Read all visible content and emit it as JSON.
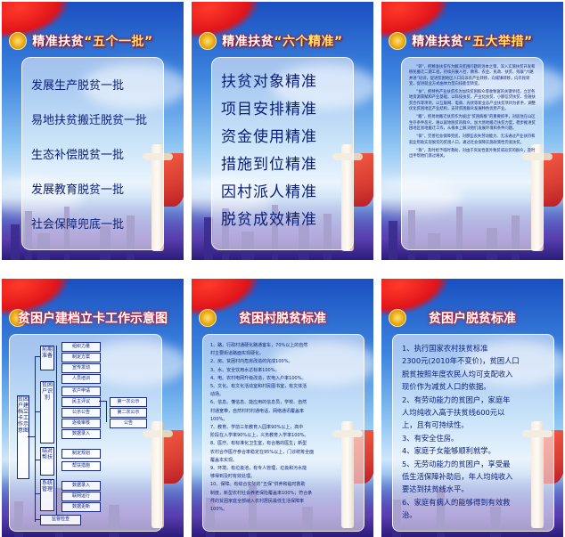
{
  "posters": {
    "p1": {
      "title_prefix": "精准扶贫",
      "title_hl": "“五个一批”",
      "items": [
        "发展生产脱贫一批",
        "易地扶贫搬迁脱贫一批",
        "生态补偿脱贫一批",
        "发展教育脱贫一批",
        "社会保障兜底一批"
      ]
    },
    "p2": {
      "title_prefix": "精准扶贫",
      "title_hl": "“六个精准”",
      "items": [
        "扶贫对象精准",
        "项目安排精准",
        "资金使用精准",
        "措施到位精准",
        "因村派人精准",
        "脱贫成效精准"
      ]
    },
    "p3": {
      "title_prefix": "精准扶贫",
      "title_hl": "“五大举措”",
      "paras": [
        "“转”，把精准扶贫作为解决贫困问题的治本之策，深入实施扶贫开发和移民搬迁二期工程，持续开展人社、教育、农业、民政、扶贫、残联“六路并进”培训，促进贫困地区人口向非农产业转移，向城镇转移，向市民转变，促进就业方式由体力型向技能型转变。",
        "“扶”，把特色产业扶贫作为加快贫困群众增收致富的关键举措，立足各地资源禀赋和产业基础，以科技扶贫、产业化扶贫、小额信贷扶贫、金融扶贫合作等项目，以互联网、电商、光伏等新业态产业扶贫项目为抓手，调整优化贫困地区产业结构，支持贫困群众发展特色优势产业。",
        "“搬”，把易地搬迁扶贫作为拔出“贫困病根”的重要抓手，对居住在山区生存条件恶劣、难以就地脱贫的群众，加大易地搬迁扶贫力度，稳步推进贫困地区易地搬迁工作，从根本上解决他们发展环境和条件问题。",
        "“保”，完善社会保障兜底，对那些丧失劳动能力、无法通过产业扶持和就业帮助实现脱贫的贫困人口，通过社会保障实施政策性兜底扶贫。",
        "“救”，及时给予临时救助，对由于突发性意外致贫或返贫的群众，及时出手帮他们渡过难关。"
      ]
    },
    "p4": {
      "title": "贫困户建档立卡工作示意图",
      "root": "贫困户建档立卡工作示意图",
      "stages": [
        "前期准备",
        "贫困户识别",
        "结对帮扶",
        "系统管理",
        "监督检查"
      ],
      "items": [
        "组织力量",
        "制定方案",
        "宣传发动",
        "人员培训",
        "农户申请",
        "民主评议",
        "公示公告",
        "逐级审核",
        "数据录入",
        "制定规划",
        "帮扶措施",
        "数据录入",
        "联网运行",
        "数据更新"
      ],
      "side": [
        "第一次公示",
        "第二次公示",
        "公告"
      ]
    },
    "p5": {
      "title": "贫困村脱贫标准",
      "lines": [
        "1、路。行政村通硬化路通客车，70%以上的自然",
        "村主要街道路面实现硬化。",
        "2、房。贫困村内危房改造的完成100%。",
        "3、水。安全饮用水达标率100%。",
        "4、电。农村电网升级改造，农电入户率100%。",
        "5、文化。有文化活动室和村民图书室，有文体活",
        "动场。",
        "6、信息。懂信息、能应用的信息员，学校、自然",
        "村通宽带，自然村村村通电话，网络通讯覆盖率",
        "100%。",
        "7、教育。学前三年教育入园率90%以上，高中",
        "阶段在入学率90%以上，义务教育入学率100%。",
        "8、医疗。有标准化卫生室，有合格的医生；新型",
        "农村合作医疗参合率稳定在95%以上，门诊统筹全面",
        "覆盖本实现。",
        "9、环境。有垃圾池，有专人管理，垃圾和污水能",
        "够得到及时有效处理。",
        "10、保障。有综合实际的“五保”供养和临时救助",
        "制度，新型农村社会养老保险覆盖率100%；符合条",
        "件的贫困家庭全部纳入农村居民最低生活保障率",
        "100%。"
      ]
    },
    "p6": {
      "title": "贫困户脱贫标准",
      "lines": [
        "1、执行国家农村扶贫标准",
        "2300元(2010年不变价)，贫困人口",
        "脱贫按照年度农民人均可支配收入",
        "现价作为减贫人口的依据。",
        "2、有劳动能力的贫困户，家庭年",
        "人均纯收入高于扶贫线600元以",
        "上，且有可持续性。",
        "3、有安全住房。",
        "4、家庭子女能够顺利就学。",
        "5、无劳动能力的贫困户，享受最",
        "低生活保障补助后，年人均纯收入",
        "要达到扶贫线水平。",
        "6、家庭有病人的能够得到有效救",
        "治。"
      ]
    }
  },
  "colors": {
    "title_red": "#e01010",
    "text_navy": "#0b1e7a",
    "highlight_yellow": "#ffe86a"
  }
}
